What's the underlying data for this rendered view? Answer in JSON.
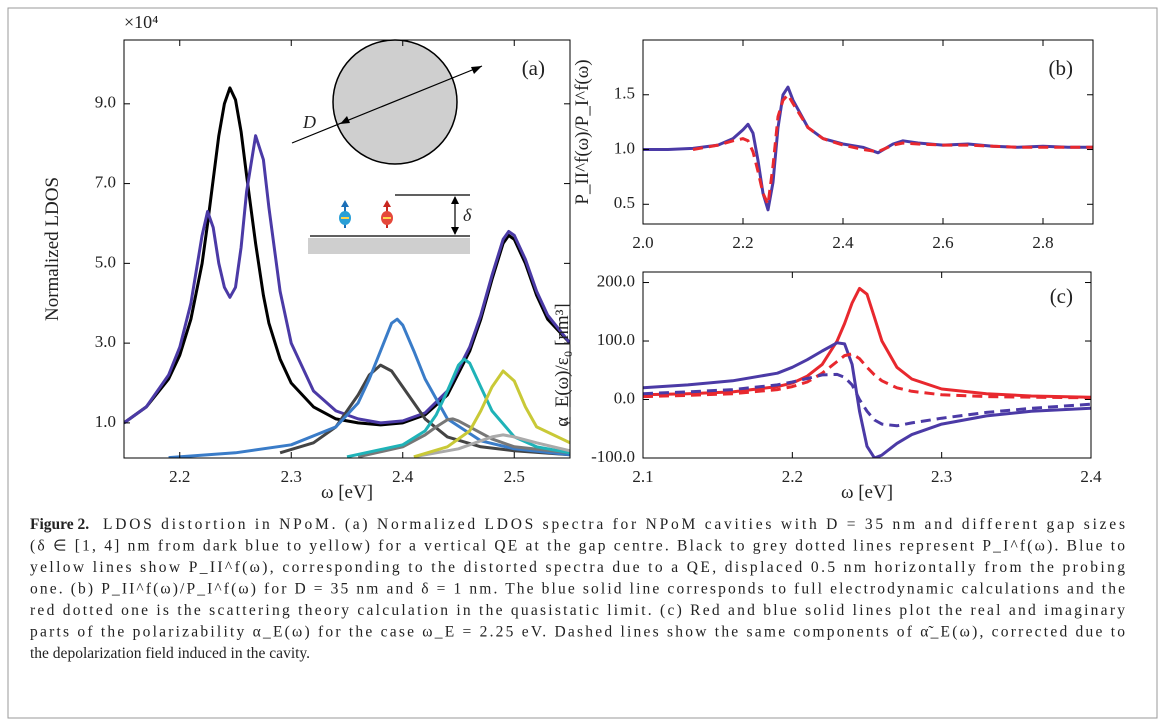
{
  "chart_data": [
    {
      "type": "line",
      "label": "(a)",
      "y_multiplier": "×10⁴",
      "ylabel": "Normalized LDOS",
      "xlabel": "ω [eV]",
      "inset_labels": [
        "D",
        "δ"
      ],
      "xlim": [
        2.15,
        2.55
      ],
      "xticks": [
        2.2,
        2.3,
        2.4,
        2.5
      ],
      "ylim": [
        0.12,
        10.6
      ],
      "yticks": [
        {
          "value": 1,
          "label": "1.0"
        },
        {
          "value": 3,
          "label": "3.0"
        },
        {
          "value": 5,
          "label": "5.0"
        },
        {
          "value": 7,
          "label": "7.0"
        },
        {
          "value": 9,
          "label": "9.0"
        }
      ],
      "series": [
        {
          "color": "#000000",
          "x": [
            2.15,
            2.17,
            2.19,
            2.2,
            2.21,
            2.22,
            2.225,
            2.23,
            2.235,
            2.24,
            2.245,
            2.25,
            2.255,
            2.26,
            2.268,
            2.275,
            2.28,
            2.29,
            2.3,
            2.32,
            2.34,
            2.36,
            2.38,
            2.4,
            2.42,
            2.44,
            2.46,
            2.47,
            2.48,
            2.49,
            2.495,
            2.5,
            2.51,
            2.52,
            2.53,
            2.55
          ],
          "values": [
            1.0,
            1.4,
            2.1,
            2.7,
            3.6,
            5.0,
            6.0,
            7.1,
            8.2,
            9.0,
            9.4,
            9.1,
            8.3,
            7.2,
            5.5,
            4.2,
            3.5,
            2.6,
            2.0,
            1.4,
            1.1,
            1.0,
            0.95,
            1.0,
            1.2,
            1.7,
            2.8,
            3.6,
            4.6,
            5.5,
            5.7,
            5.6,
            5.0,
            4.2,
            3.6,
            3.0
          ]
        },
        {
          "color": "#4b3aa6",
          "x": [
            2.15,
            2.17,
            2.19,
            2.2,
            2.21,
            2.22,
            2.225,
            2.23,
            2.235,
            2.24,
            2.245,
            2.25,
            2.255,
            2.26,
            2.268,
            2.275,
            2.28,
            2.29,
            2.3,
            2.32,
            2.34,
            2.36,
            2.38,
            2.4,
            2.42,
            2.44,
            2.46,
            2.47,
            2.48,
            2.49,
            2.495,
            2.5,
            2.51,
            2.52,
            2.53,
            2.55
          ],
          "values": [
            1.0,
            1.4,
            2.2,
            2.9,
            4.0,
            5.7,
            6.3,
            5.9,
            5.0,
            4.4,
            4.15,
            4.4,
            5.4,
            6.8,
            8.2,
            7.6,
            6.4,
            4.3,
            3.0,
            1.8,
            1.3,
            1.1,
            1.0,
            1.05,
            1.25,
            1.8,
            2.9,
            3.7,
            4.7,
            5.6,
            5.8,
            5.7,
            5.1,
            4.3,
            3.7,
            3.0
          ]
        },
        {
          "color": "#444444",
          "x": [
            2.29,
            2.32,
            2.34,
            2.36,
            2.37,
            2.38,
            2.39,
            2.4,
            2.42,
            2.44,
            2.47,
            2.5,
            2.55
          ],
          "values": [
            0.25,
            0.5,
            0.9,
            1.7,
            2.2,
            2.45,
            2.3,
            1.9,
            1.1,
            0.65,
            0.4,
            0.3,
            0.2
          ]
        },
        {
          "color": "#3a7cc8",
          "x": [
            2.19,
            2.25,
            2.3,
            2.34,
            2.36,
            2.37,
            2.38,
            2.39,
            2.395,
            2.4,
            2.41,
            2.42,
            2.44,
            2.47,
            2.5,
            2.55
          ],
          "values": [
            0.13,
            0.25,
            0.45,
            0.9,
            1.5,
            2.1,
            2.8,
            3.5,
            3.6,
            3.45,
            2.8,
            2.1,
            1.1,
            0.55,
            0.35,
            0.2
          ]
        },
        {
          "color": "#777777",
          "x": [
            2.36,
            2.4,
            2.42,
            2.43,
            2.44,
            2.445,
            2.45,
            2.46,
            2.48,
            2.5,
            2.55
          ],
          "values": [
            0.15,
            0.4,
            0.7,
            0.9,
            1.08,
            1.1,
            1.05,
            0.9,
            0.6,
            0.4,
            0.25
          ]
        },
        {
          "color": "#1fb3b8",
          "x": [
            2.35,
            2.4,
            2.42,
            2.43,
            2.44,
            2.45,
            2.455,
            2.46,
            2.47,
            2.48,
            2.5,
            2.52,
            2.55
          ],
          "values": [
            0.15,
            0.45,
            0.8,
            1.2,
            1.8,
            2.45,
            2.6,
            2.5,
            1.9,
            1.3,
            0.65,
            0.4,
            0.25
          ]
        },
        {
          "color": "#aaaaaa",
          "x": [
            2.41,
            2.45,
            2.47,
            2.48,
            2.49,
            2.5,
            2.52,
            2.55
          ],
          "values": [
            0.15,
            0.35,
            0.55,
            0.65,
            0.7,
            0.65,
            0.5,
            0.3
          ]
        },
        {
          "color": "#c9c937",
          "x": [
            2.41,
            2.44,
            2.46,
            2.47,
            2.48,
            2.49,
            2.5,
            2.51,
            2.52,
            2.55
          ],
          "values": [
            0.15,
            0.4,
            0.8,
            1.3,
            1.9,
            2.3,
            2.05,
            1.4,
            0.9,
            0.5
          ]
        }
      ]
    },
    {
      "type": "line",
      "label": "(b)",
      "ylabel": "P_II^f(ω)/P_I^f(ω)",
      "xlim": [
        2.0,
        2.9
      ],
      "xticks": [
        {
          "value": 2,
          "label": "2.0"
        },
        2.2,
        2.4,
        2.6,
        2.8
      ],
      "ylim": [
        0.32,
        2.0
      ],
      "yticks": [
        0.5,
        {
          "value": 1,
          "label": "1.0"
        },
        1.5
      ],
      "x": [
        2.0,
        2.05,
        2.1,
        2.15,
        2.18,
        2.2,
        2.21,
        2.22,
        2.23,
        2.24,
        2.25,
        2.26,
        2.27,
        2.28,
        2.29,
        2.3,
        2.33,
        2.36,
        2.4,
        2.44,
        2.47,
        2.5,
        2.52,
        2.55,
        2.6,
        2.65,
        2.7,
        2.75,
        2.8,
        2.85,
        2.9
      ],
      "series": [
        {
          "color": "#4b3aa6",
          "style": "solid",
          "values": [
            1.0,
            1.0,
            1.01,
            1.04,
            1.1,
            1.18,
            1.23,
            1.15,
            0.9,
            0.6,
            0.45,
            0.7,
            1.2,
            1.5,
            1.57,
            1.45,
            1.2,
            1.1,
            1.05,
            1.02,
            0.97,
            1.05,
            1.08,
            1.06,
            1.04,
            1.05,
            1.03,
            1.02,
            1.03,
            1.02,
            1.02
          ]
        },
        {
          "color": "#e8282e",
          "style": "dashed",
          "values": [
            null,
            null,
            1.0,
            1.04,
            1.08,
            1.1,
            1.08,
            0.98,
            0.8,
            0.6,
            0.5,
            0.85,
            1.3,
            1.45,
            1.5,
            1.42,
            1.2,
            1.1,
            1.04,
            1.0,
            0.98,
            1.04,
            1.06,
            1.05,
            1.04,
            1.04,
            1.03,
            1.02,
            1.02,
            1.02,
            1.02
          ]
        }
      ]
    },
    {
      "type": "line",
      "label": "(c)",
      "ylabel": "α_E(ω)/ε₀ [nm³]",
      "xlabel": "ω [eV]",
      "xlim": [
        2.1,
        2.4
      ],
      "xticks": [
        2.1,
        2.2,
        2.3,
        2.4
      ],
      "ylim": [
        -100,
        218
      ],
      "yticks": [
        {
          "value": -100,
          "label": "-100.0"
        },
        {
          "value": 0,
          "label": "0.0"
        },
        {
          "value": 100,
          "label": "100.0"
        },
        {
          "value": 200,
          "label": "200.0"
        }
      ],
      "x": [
        2.1,
        2.13,
        2.16,
        2.19,
        2.2,
        2.21,
        2.22,
        2.23,
        2.235,
        2.24,
        2.245,
        2.25,
        2.255,
        2.26,
        2.27,
        2.28,
        2.3,
        2.33,
        2.36,
        2.4
      ],
      "series": [
        {
          "color": "#e8282e",
          "style": "solid",
          "values": [
            8,
            10,
            13,
            22,
            28,
            40,
            60,
            100,
            130,
            165,
            190,
            180,
            140,
            100,
            55,
            35,
            18,
            10,
            6,
            4
          ]
        },
        {
          "color": "#4b3aa6",
          "style": "solid",
          "values": [
            20,
            25,
            32,
            45,
            55,
            68,
            83,
            97,
            95,
            60,
            -20,
            -80,
            -100,
            -95,
            -75,
            -60,
            -42,
            -28,
            -20,
            -15
          ]
        },
        {
          "color": "#e8282e",
          "style": "dashed",
          "values": [
            5,
            7,
            10,
            17,
            22,
            30,
            45,
            65,
            75,
            78,
            70,
            55,
            42,
            32,
            20,
            14,
            8,
            5,
            4,
            3
          ]
        },
        {
          "color": "#4b3aa6",
          "style": "dashed",
          "values": [
            10,
            13,
            17,
            25,
            30,
            36,
            42,
            43,
            38,
            25,
            0,
            -20,
            -35,
            -42,
            -45,
            -40,
            -32,
            -22,
            -15,
            -8
          ]
        }
      ]
    }
  ],
  "caption_label": "Figure 2.",
  "caption": [
    "LDOS distortion in NPoM. (a) Normalized LDOS spectra for NPoM cavities with D = 35 nm and different gap sizes",
    "(δ ∈ [1, 4] nm from dark blue to yellow) for a vertical QE at the gap centre. Black to grey dotted lines represent P_I^f(ω). Blue to",
    "yellow lines show P_II^f(ω), corresponding to the distorted spectra due to a QE, displaced 0.5 nm horizontally from the probing",
    "one. (b) P_II^f(ω)/P_I^f(ω) for D = 35 nm and δ = 1 nm. The blue solid line corresponds to full electrodynamic calculations and the",
    "red dotted one is the scattering theory calculation in the quasistatic limit. (c) Red and blue solid lines plot the real and imaginary",
    "parts of the polarizability α_E(ω) for the case ω_E = 2.25 eV. Dashed lines show the same components of α̃_E(ω), corrected due to",
    "the depolarization field induced in the cavity."
  ]
}
